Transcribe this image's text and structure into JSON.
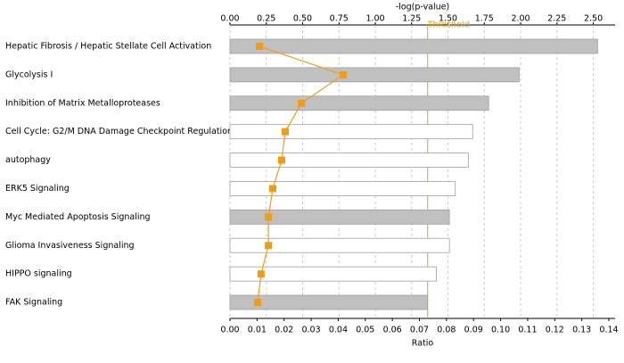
{
  "chart_data": {
    "type": "bar",
    "orientation": "horizontal",
    "categories": [
      "Hepatic Fibrosis / Hepatic Stellate Cell Activation",
      "Glycolysis I",
      "Inhibition of Matrix Metalloproteases",
      "Cell Cycle: G2/M DNA Damage Checkpoint Regulation",
      "autophagy",
      "ERK5 Signaling",
      "Myc Mediated Apoptosis Signaling",
      "Glioma Invasiveness Signaling",
      "HIPPO signaling",
      "FAK Signaling"
    ],
    "series": [
      {
        "type": "bar",
        "axis": "x2",
        "values": [
          2.53,
          1.99,
          1.78,
          1.67,
          1.64,
          1.55,
          1.51,
          1.51,
          1.42,
          1.36
        ],
        "colors": [
          "#c0c0c0",
          "#c0c0c0",
          "#c0c0c0",
          "#ffffff",
          "#ffffff",
          "#ffffff",
          "#c0c0c0",
          "#ffffff",
          "#ffffff",
          "#c0c0c0"
        ]
      },
      {
        "type": "line",
        "axis": "x",
        "color": "#f39c12",
        "values": [
          0.0109,
          0.0418,
          0.0264,
          0.0204,
          0.0191,
          0.0158,
          0.0142,
          0.0142,
          0.0115,
          0.0102
        ]
      }
    ],
    "x2label": "-log(p-value)",
    "x2lim": [
      0,
      2.65
    ],
    "x2ticks": [
      {
        "value": 0,
        "label": "0.00"
      },
      {
        "value": 0.25,
        "label": "0.25"
      },
      {
        "value": 0.5,
        "label": "0.50"
      },
      {
        "value": 0.75,
        "label": "0.75"
      },
      {
        "value": 1,
        "label": "1.00"
      },
      {
        "value": 1.25,
        "label": "1.25"
      },
      {
        "value": 1.5,
        "label": "1.50"
      },
      {
        "value": 1.75,
        "label": "1.75"
      },
      {
        "value": 2,
        "label": "2.00"
      },
      {
        "value": 2.25,
        "label": "2.25"
      },
      {
        "value": 2.5,
        "label": "2.50"
      }
    ],
    "xlabel": "Ratio",
    "xlim": [
      0,
      0.14
    ],
    "xticks": [
      {
        "value": 0,
        "label": "0.00"
      },
      {
        "value": 0.01,
        "label": "0.01"
      },
      {
        "value": 0.02,
        "label": "0.02"
      },
      {
        "value": 0.03,
        "label": "0.03"
      },
      {
        "value": 0.04,
        "label": "0.04"
      },
      {
        "value": 0.05,
        "label": "0.05"
      },
      {
        "value": 0.06,
        "label": "0.06"
      },
      {
        "value": 0.07,
        "label": "0.07"
      },
      {
        "value": 0.08,
        "label": "0.08"
      },
      {
        "value": 0.09,
        "label": "0.09"
      },
      {
        "value": 0.1,
        "label": "0.10"
      },
      {
        "value": 0.11,
        "label": "0.11"
      },
      {
        "value": 0.12,
        "label": "0.12"
      },
      {
        "value": 0.13,
        "label": "0.13"
      },
      {
        "value": 0.14,
        "label": "0.14"
      }
    ],
    "threshold": {
      "value": 1.36,
      "label": "Threshold",
      "color": "#f39c12"
    },
    "grid": true
  }
}
